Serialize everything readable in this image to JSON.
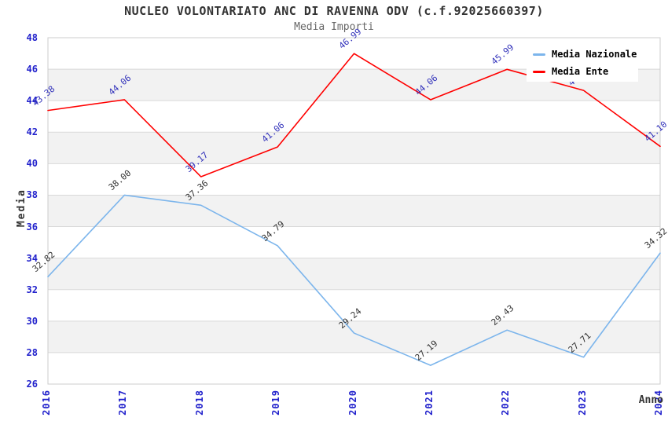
{
  "chart_data": {
    "type": "line",
    "title": "NUCLEO VOLONTARIATO ANC DI RAVENNA ODV (c.f.92025660397)",
    "subtitle": "Media Importi",
    "xlabel": "Anno",
    "ylabel": "Media",
    "categories": [
      "2016",
      "2017",
      "2018",
      "2019",
      "2020",
      "2021",
      "2022",
      "2023",
      "2024"
    ],
    "series": [
      {
        "name": "Media Nazionale",
        "color": "#7cb5ec",
        "label_color": "#333333",
        "values": [
          32.82,
          38.0,
          37.36,
          34.79,
          29.24,
          27.19,
          29.43,
          27.71,
          34.32
        ]
      },
      {
        "name": "Media Ente",
        "color": "#ff0000",
        "label_color": "#3333bb",
        "values": [
          43.38,
          44.06,
          39.17,
          41.06,
          46.99,
          44.06,
          45.99,
          44.65,
          41.1
        ]
      }
    ],
    "ylim": [
      26,
      48
    ],
    "ytick_step": 2,
    "yticks": [
      26,
      28,
      30,
      32,
      34,
      36,
      38,
      40,
      42,
      44,
      46,
      48
    ],
    "grid": true,
    "alternating_bands": true,
    "band_color": "#f2f2f2",
    "grid_color": "#d9d9d9",
    "border_color": "#cccccc",
    "axis_tick_color": "#2222cc",
    "legend_position": "top-right"
  }
}
